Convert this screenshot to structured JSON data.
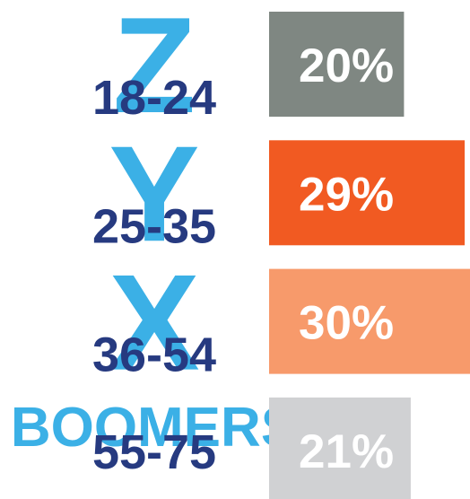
{
  "chart_data": {
    "type": "bar",
    "categories": [
      "Z",
      "Y",
      "X",
      "BOOMERS"
    ],
    "age_ranges": [
      "18-24",
      "25-35",
      "36-54",
      "55-75"
    ],
    "values": [
      20,
      29,
      30,
      21
    ],
    "value_labels": [
      "20%",
      "29%",
      "30%",
      "21%"
    ],
    "colors": [
      "#7f8782",
      "#f15a22",
      "#f79a6b",
      "#d0d1d3"
    ],
    "category_color": "#3bb0e6",
    "age_color": "#263a80",
    "label_color": "#ffffff"
  }
}
